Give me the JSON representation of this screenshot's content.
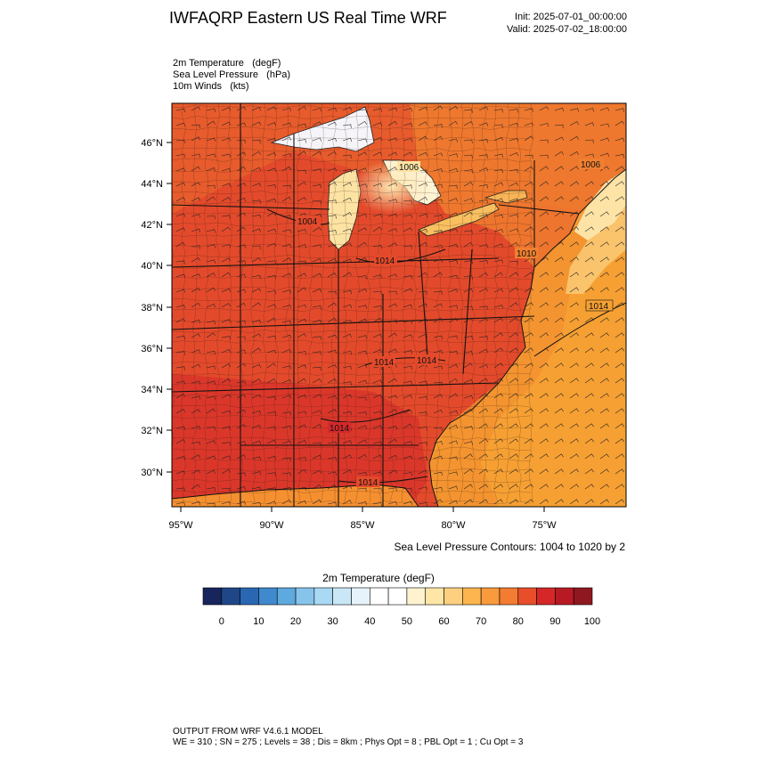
{
  "header": {
    "title": "IWFAQRP Eastern US Real Time WRF",
    "init": "Init: 2025-07-01_00:00:00",
    "valid": "Valid: 2025-07-02_18:00:00"
  },
  "fields": [
    {
      "name": "2m Temperature",
      "unit": "(degF)"
    },
    {
      "name": "Sea Level Pressure",
      "unit": "(hPa)"
    },
    {
      "name": "10m Winds",
      "unit": "(kts)"
    }
  ],
  "map": {
    "lat_labels": [
      "46°N",
      "44°N",
      "42°N",
      "40°N",
      "38°N",
      "36°N",
      "34°N",
      "32°N",
      "30°N"
    ],
    "lon_labels": [
      "95°W",
      "90°W",
      "85°W",
      "80°W",
      "75°W"
    ],
    "pressure_labels": [
      "1006",
      "1006",
      "1004",
      "1014",
      "1010",
      "1014",
      "1014",
      "1014",
      "1014",
      "1014"
    ],
    "colors": {
      "land": "#e2462a",
      "warm": "#f07c2c",
      "ocean": "#f5a030",
      "lakes": "#f8f0f6"
    }
  },
  "contour_note": "Sea Level Pressure Contours: 1004 to 1020 by 2",
  "colorbar": {
    "title": "2m Temperature  (degF)",
    "colors": [
      "#17255c",
      "#1f4788",
      "#2a67b3",
      "#4089cc",
      "#5ea9de",
      "#86c4ec",
      "#a9d9f3",
      "#c9e7f6",
      "#e6f3fb",
      "#ffffff",
      "#ffffff",
      "#fff3cf",
      "#fee6a6",
      "#fdd080",
      "#fcb54f",
      "#f99a3c",
      "#f47b32",
      "#e84e2a",
      "#d52728",
      "#b81a24",
      "#8f1820"
    ],
    "ticks": [
      "0",
      "10",
      "20",
      "30",
      "40",
      "50",
      "60",
      "70",
      "80",
      "90",
      "100"
    ]
  },
  "footer": {
    "line1": "OUTPUT FROM WRF V4.6.1 MODEL",
    "line2": "WE = 310 ; SN = 275 ; Levels = 38 ; Dis = 8km ; Phys Opt = 8 ; PBL Opt = 1 ; Cu Opt = 3"
  }
}
